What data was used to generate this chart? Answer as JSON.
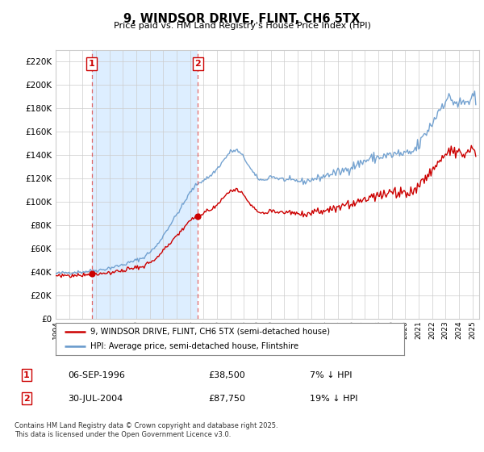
{
  "title": "9, WINDSOR DRIVE, FLINT, CH6 5TX",
  "subtitle": "Price paid vs. HM Land Registry's House Price Index (HPI)",
  "hpi_label": "HPI: Average price, semi-detached house, Flintshire",
  "price_label": "9, WINDSOR DRIVE, FLINT, CH6 5TX (semi-detached house)",
  "sale1_date": "06-SEP-1996",
  "sale1_price": 38500,
  "sale1_pct": "7% ↓ HPI",
  "sale2_date": "30-JUL-2004",
  "sale2_price": 87750,
  "sale2_pct": "19% ↓ HPI",
  "footer": "Contains HM Land Registry data © Crown copyright and database right 2025.\nThis data is licensed under the Open Government Licence v3.0.",
  "ylim": [
    0,
    230000
  ],
  "yticks": [
    0,
    20000,
    40000,
    60000,
    80000,
    100000,
    120000,
    140000,
    160000,
    180000,
    200000,
    220000
  ],
  "price_color": "#cc0000",
  "hpi_color": "#6699cc",
  "annotation_color": "#cc0000",
  "grid_color": "#cccccc",
  "background_color": "#ffffff",
  "highlight_color": "#ddeeff",
  "sale1_x": 1996.67,
  "sale2_x": 2004.58,
  "xmin": 1994.0,
  "xmax": 2025.5
}
